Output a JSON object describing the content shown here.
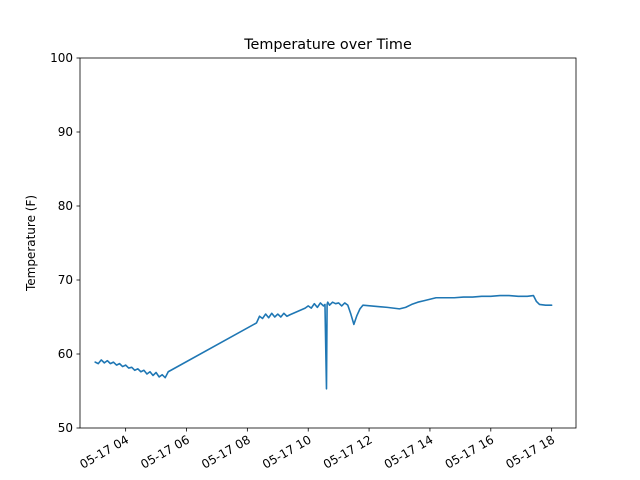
{
  "chart_data": {
    "type": "line",
    "title": "Temperature over Time",
    "xlabel": "",
    "ylabel": "Temperature (F)",
    "ylim": [
      50,
      100
    ],
    "yticks": [
      50,
      60,
      70,
      80,
      90,
      100
    ],
    "x_unit": "hours on 05-17",
    "xlim": [
      2.5,
      18.8
    ],
    "xticks": [
      {
        "value": 4,
        "label": "05-17 04"
      },
      {
        "value": 6,
        "label": "05-17 06"
      },
      {
        "value": 8,
        "label": "05-17 08"
      },
      {
        "value": 10,
        "label": "05-17 10"
      },
      {
        "value": 12,
        "label": "05-17 12"
      },
      {
        "value": 14,
        "label": "05-17 14"
      },
      {
        "value": 16,
        "label": "05-17 16"
      },
      {
        "value": 18,
        "label": "05-17 18"
      }
    ],
    "grid": false,
    "legend": "none",
    "line_color": "#1f77b4",
    "series": [
      {
        "x": [
          3.0,
          3.1,
          3.2,
          3.3,
          3.4,
          3.5,
          3.6,
          3.7,
          3.8,
          3.9,
          4.0,
          4.1,
          4.2,
          4.3,
          4.4,
          4.5,
          4.6,
          4.7,
          4.8,
          4.9,
          5.0,
          5.1,
          5.2,
          5.3,
          5.4,
          8.3,
          8.4,
          8.5,
          8.6,
          8.7,
          8.8,
          8.9,
          9.0,
          9.1,
          9.2,
          9.3,
          9.4,
          9.9,
          10.0,
          10.1,
          10.2,
          10.3,
          10.4,
          10.5,
          10.55,
          10.6,
          10.62,
          10.64,
          10.7,
          10.8,
          10.9,
          11.0,
          11.1,
          11.2,
          11.3,
          11.4,
          11.5,
          11.6,
          11.7,
          11.8,
          12.6,
          12.8,
          13.0,
          13.2,
          13.4,
          13.6,
          13.8,
          14.0,
          14.2,
          14.5,
          14.8,
          15.1,
          15.4,
          15.7,
          16.0,
          16.3,
          16.6,
          16.9,
          17.2,
          17.4,
          17.5,
          17.6,
          17.8,
          18.0
        ],
        "y": [
          58.9,
          58.7,
          59.2,
          58.8,
          59.1,
          58.7,
          58.9,
          58.5,
          58.7,
          58.3,
          58.5,
          58.1,
          58.2,
          57.8,
          58.0,
          57.6,
          57.8,
          57.3,
          57.6,
          57.1,
          57.5,
          56.9,
          57.2,
          56.8,
          57.6,
          64.2,
          65.1,
          64.8,
          65.4,
          64.9,
          65.5,
          65.0,
          65.4,
          65.0,
          65.5,
          65.1,
          65.3,
          66.2,
          66.5,
          66.2,
          66.8,
          66.3,
          66.9,
          66.5,
          66.7,
          55.3,
          66.7,
          67.0,
          66.6,
          67.0,
          66.8,
          66.9,
          66.5,
          66.9,
          66.6,
          65.4,
          64.0,
          65.2,
          66.1,
          66.6,
          66.3,
          66.2,
          66.1,
          66.3,
          66.7,
          67.0,
          67.2,
          67.4,
          67.6,
          67.6,
          67.6,
          67.7,
          67.7,
          67.8,
          67.8,
          67.9,
          67.9,
          67.8,
          67.8,
          67.9,
          67.1,
          66.7,
          66.6,
          66.6
        ]
      }
    ]
  }
}
